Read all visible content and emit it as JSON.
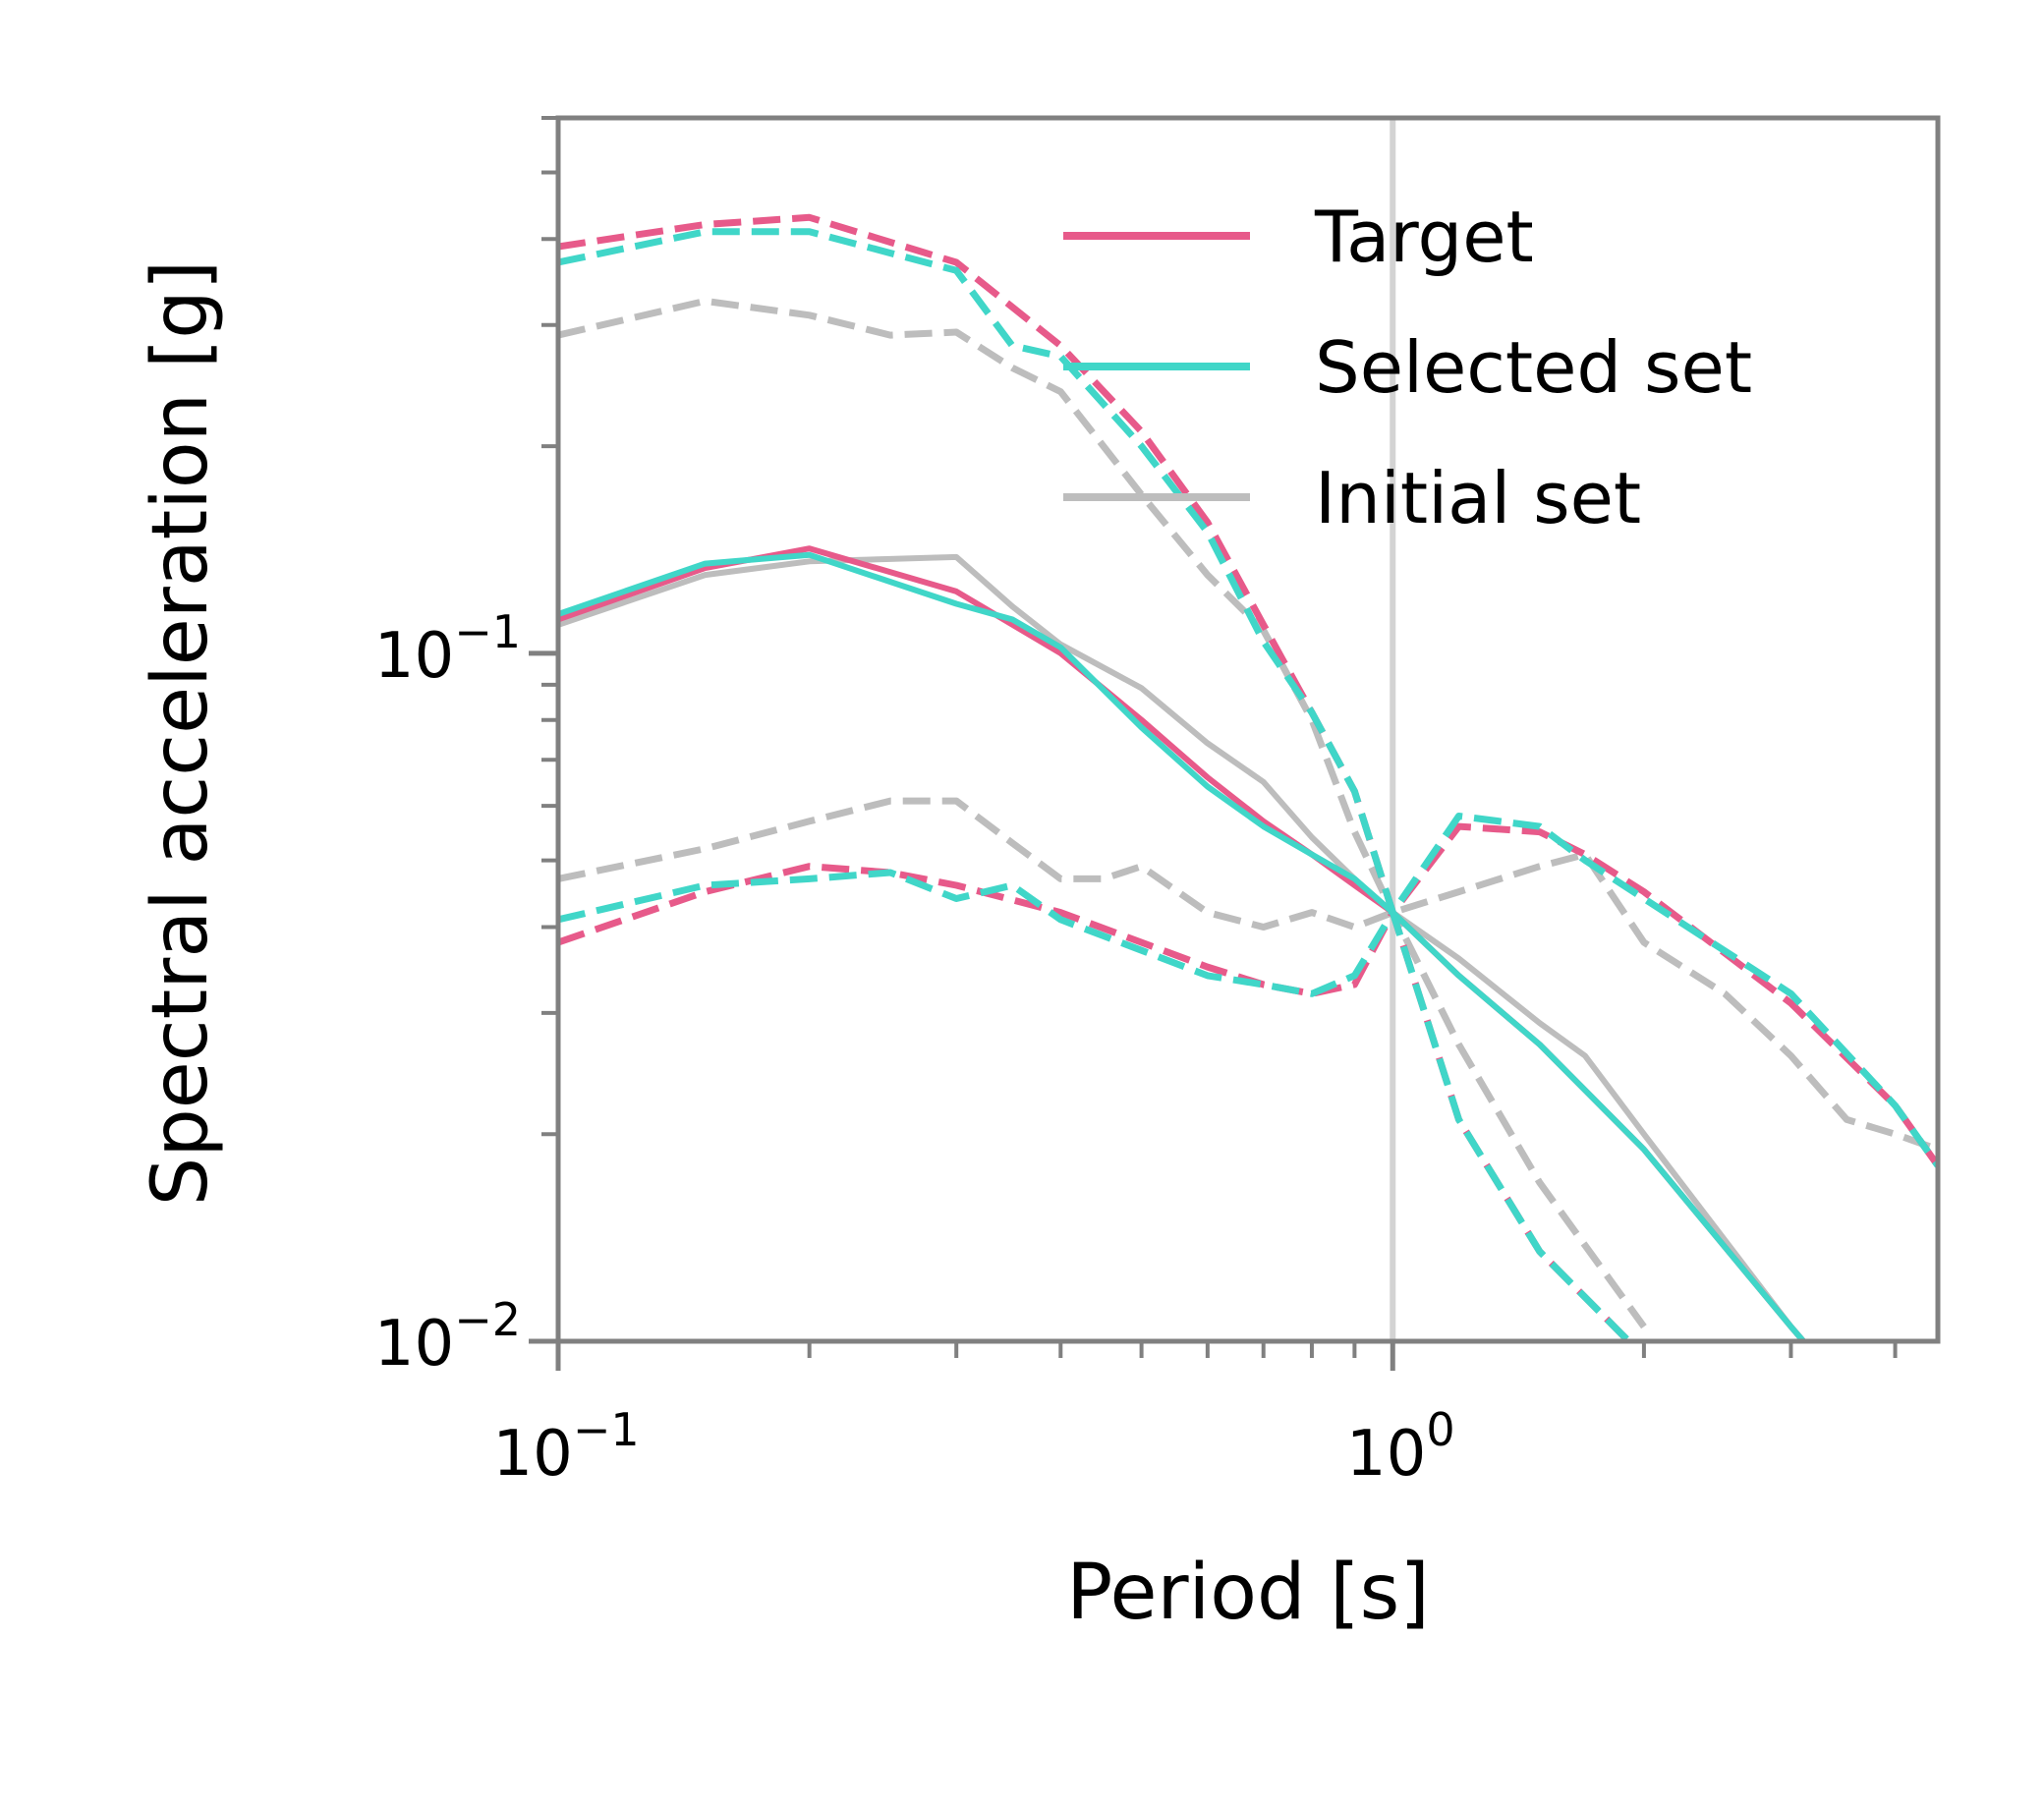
{
  "chart_data": {
    "type": "line",
    "xlabel": "Period [s]",
    "ylabel": "Spectral acceleration [g]",
    "xscale": "log",
    "yscale": "log",
    "xlim": [
      0.1,
      4.5
    ],
    "ylim": [
      0.01,
      0.6
    ],
    "x_ticks": [
      {
        "base": "10",
        "exp": "−1",
        "value": 0.1
      },
      {
        "base": "10",
        "exp": "0",
        "value": 1
      }
    ],
    "y_ticks": [
      {
        "base": "10",
        "exp": "−2",
        "value": 0.01
      },
      {
        "base": "10",
        "exp": "−1",
        "value": 0.1
      }
    ],
    "reference_line": {
      "x": 1.0,
      "color": "#d3d3d3"
    },
    "grid": false,
    "legend_position": "top-right",
    "colors": {
      "target": "#e75a8a",
      "selected": "#40d6c8",
      "initial": "#bdbdbd",
      "frame": "#808080"
    },
    "legend": [
      {
        "label": "Target",
        "color": "#e75a8a"
      },
      {
        "label": "Selected set",
        "color": "#40d6c8"
      },
      {
        "label": "Initial set",
        "color": "#bdbdbd"
      }
    ],
    "series": [
      {
        "legend_key": "target",
        "style": "solid",
        "color": "#e75a8a",
        "x": [
          0.1,
          0.15,
          0.2,
          0.3,
          0.4,
          0.5,
          0.6,
          0.7,
          0.8,
          0.9,
          1.0,
          1.2,
          1.5,
          2.0,
          3.0,
          4.0
        ],
        "y": [
          0.112,
          0.133,
          0.142,
          0.123,
          0.1,
          0.08,
          0.066,
          0.057,
          0.051,
          0.046,
          0.042,
          0.034,
          0.027,
          0.019,
          0.0105,
          0.007
        ]
      },
      {
        "legend_key": "target",
        "style": "dashed",
        "color": "#e75a8a",
        "x": [
          0.1,
          0.15,
          0.2,
          0.3,
          0.4,
          0.5,
          0.6,
          0.7,
          0.8,
          0.9,
          1.0,
          1.2,
          1.5,
          1.7,
          2.0,
          3.0,
          4.0,
          4.5
        ],
        "y": [
          0.39,
          0.42,
          0.43,
          0.37,
          0.28,
          0.21,
          0.155,
          0.11,
          0.082,
          0.063,
          0.042,
          0.056,
          0.055,
          0.051,
          0.045,
          0.031,
          0.022,
          0.018
        ]
      },
      {
        "legend_key": "target",
        "style": "dashed",
        "color": "#e75a8a",
        "x": [
          0.1,
          0.15,
          0.2,
          0.25,
          0.3,
          0.4,
          0.5,
          0.6,
          0.7,
          0.8,
          0.9,
          1.0,
          1.2,
          1.5,
          2.0
        ],
        "y": [
          0.038,
          0.045,
          0.049,
          0.048,
          0.046,
          0.042,
          0.038,
          0.035,
          0.033,
          0.032,
          0.033,
          0.042,
          0.021,
          0.0135,
          0.0095
        ]
      },
      {
        "legend_key": "selected",
        "style": "solid",
        "color": "#40d6c8",
        "x": [
          0.1,
          0.15,
          0.2,
          0.3,
          0.35,
          0.4,
          0.5,
          0.6,
          0.7,
          0.8,
          0.9,
          1.0,
          1.2,
          1.5,
          2.0,
          3.0,
          4.0
        ],
        "y": [
          0.114,
          0.135,
          0.139,
          0.118,
          0.112,
          0.102,
          0.078,
          0.064,
          0.056,
          0.051,
          0.047,
          0.042,
          0.034,
          0.027,
          0.019,
          0.0105,
          0.007
        ]
      },
      {
        "legend_key": "selected",
        "style": "dashed",
        "color": "#40d6c8",
        "x": [
          0.1,
          0.15,
          0.2,
          0.3,
          0.35,
          0.4,
          0.5,
          0.6,
          0.7,
          0.8,
          0.9,
          1.0,
          1.2,
          1.5,
          1.7,
          2.0,
          3.0,
          4.0,
          4.5
        ],
        "y": [
          0.37,
          0.41,
          0.41,
          0.36,
          0.28,
          0.27,
          0.2,
          0.15,
          0.104,
          0.082,
          0.063,
          0.042,
          0.058,
          0.056,
          0.05,
          0.044,
          0.032,
          0.022,
          0.018
        ]
      },
      {
        "legend_key": "selected",
        "style": "dashed",
        "color": "#40d6c8",
        "x": [
          0.1,
          0.15,
          0.2,
          0.25,
          0.3,
          0.35,
          0.4,
          0.5,
          0.6,
          0.7,
          0.8,
          0.9,
          1.0,
          1.2,
          1.5,
          2.0
        ],
        "y": [
          0.041,
          0.046,
          0.047,
          0.048,
          0.044,
          0.046,
          0.041,
          0.037,
          0.034,
          0.033,
          0.032,
          0.034,
          0.042,
          0.021,
          0.0135,
          0.0095
        ]
      },
      {
        "legend_key": "initial",
        "style": "solid",
        "color": "#bdbdbd",
        "x": [
          0.1,
          0.15,
          0.2,
          0.3,
          0.35,
          0.4,
          0.5,
          0.6,
          0.7,
          0.8,
          0.9,
          1.0,
          1.2,
          1.5,
          1.7,
          2.0,
          3.0,
          4.0
        ],
        "y": [
          0.11,
          0.13,
          0.136,
          0.138,
          0.117,
          0.103,
          0.089,
          0.074,
          0.065,
          0.054,
          0.047,
          0.042,
          0.036,
          0.029,
          0.026,
          0.02,
          0.0105,
          0.007
        ]
      },
      {
        "legend_key": "initial",
        "style": "dashed",
        "color": "#bdbdbd",
        "x": [
          0.1,
          0.15,
          0.2,
          0.25,
          0.3,
          0.35,
          0.4,
          0.5,
          0.6,
          0.7,
          0.8,
          0.9,
          1.0,
          1.2,
          1.5,
          2.0
        ],
        "y": [
          0.29,
          0.325,
          0.31,
          0.29,
          0.293,
          0.26,
          0.24,
          0.17,
          0.13,
          0.108,
          0.08,
          0.055,
          0.042,
          0.027,
          0.017,
          0.0105
        ]
      },
      {
        "legend_key": "initial",
        "style": "dashed",
        "color": "#bdbdbd",
        "x": [
          0.1,
          0.15,
          0.2,
          0.25,
          0.3,
          0.35,
          0.4,
          0.45,
          0.5,
          0.6,
          0.7,
          0.8,
          0.9,
          1.0,
          1.2,
          1.5,
          1.7,
          2.0,
          2.5,
          3.0,
          3.5,
          4.0,
          4.5
        ],
        "y": [
          0.047,
          0.052,
          0.057,
          0.061,
          0.061,
          0.053,
          0.047,
          0.047,
          0.049,
          0.042,
          0.04,
          0.042,
          0.04,
          0.042,
          0.045,
          0.049,
          0.051,
          0.038,
          0.032,
          0.026,
          0.021,
          0.02,
          0.019
        ]
      }
    ]
  }
}
